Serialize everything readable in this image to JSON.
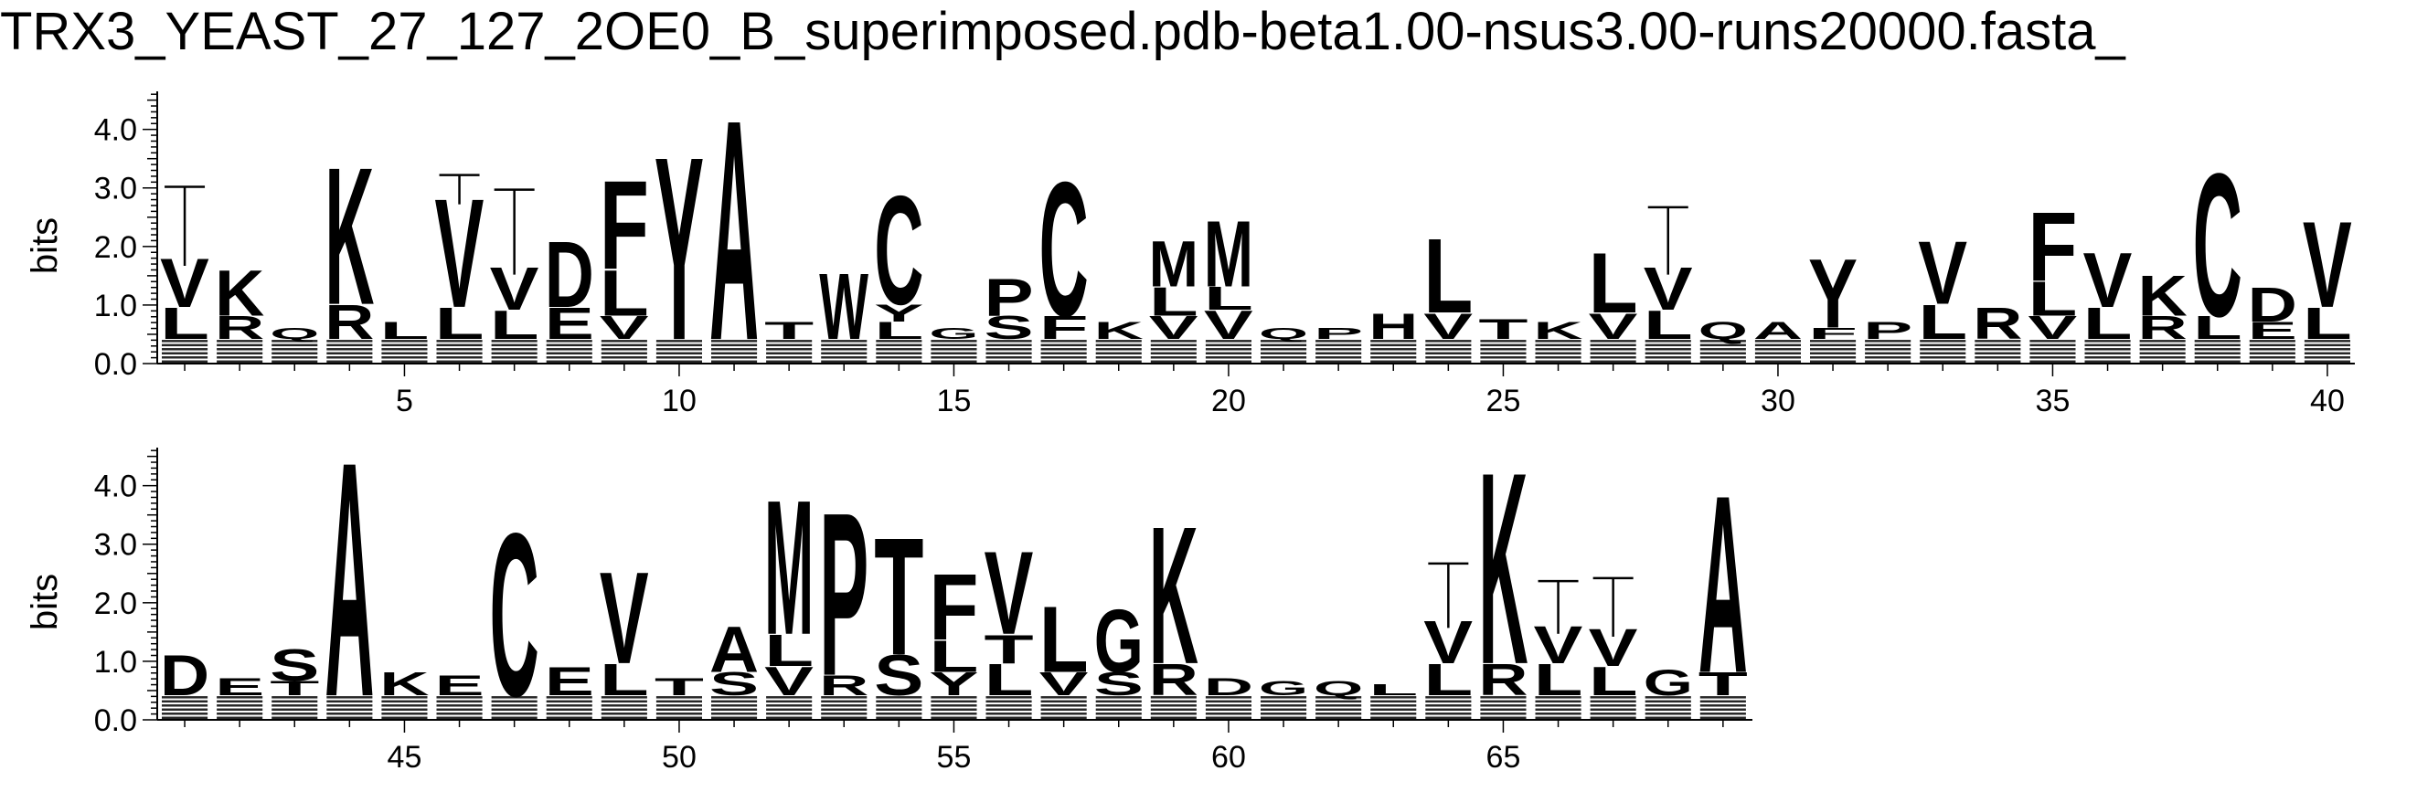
{
  "title": "TRX3_YEAST_27_127_2OE0_B_superimposed.pdb-beta1.00-nsus3.00-runs20000.fasta_",
  "chart_data": {
    "type": "sequence-logo",
    "ylabel": "bits",
    "ylim": [
      0,
      4.0
    ],
    "yticks": [
      "0.0",
      "1.0",
      "2.0",
      "3.0",
      "4.0"
    ],
    "rows": [
      {
        "positions": [
          1,
          40
        ],
        "xticks": [
          "5",
          "10",
          "15",
          "20",
          "25",
          "30",
          "35",
          "40"
        ],
        "columns": [
          {
            "pos": 1,
            "letters": [
              [
                "L",
                0.55
              ],
              [
                "V",
                0.85
              ]
            ],
            "err": 1.2
          },
          {
            "pos": 2,
            "letters": [
              [
                "R",
                0.4
              ],
              [
                "K",
                0.8
              ]
            ]
          },
          {
            "pos": 3,
            "letters": [
              [
                "Q",
                0.2
              ]
            ]
          },
          {
            "pos": 4,
            "letters": [
              [
                "R",
                0.6
              ],
              [
                "K",
                2.4
              ]
            ]
          },
          {
            "pos": 5,
            "letters": [
              [
                "L",
                0.3
              ]
            ]
          },
          {
            "pos": 6,
            "letters": [
              [
                "L",
                0.55
              ],
              [
                "V",
                1.9
              ]
            ],
            "err": 0.35
          },
          {
            "pos": 7,
            "letters": [
              [
                "L",
                0.5
              ],
              [
                "V",
                0.75
              ]
            ],
            "err": 1.3
          },
          {
            "pos": 8,
            "letters": [
              [
                "E",
                0.55
              ],
              [
                "D",
                1.15
              ]
            ]
          },
          {
            "pos": 9,
            "letters": [
              [
                "V",
                0.4
              ],
              [
                "L",
                0.8
              ],
              [
                "F",
                1.55
              ]
            ]
          },
          {
            "pos": 10,
            "letters": [
              [
                "Y",
                3.2
              ]
            ]
          },
          {
            "pos": 11,
            "letters": [
              [
                "A",
                3.85
              ]
            ]
          },
          {
            "pos": 12,
            "letters": [
              [
                "T",
                0.3
              ]
            ]
          },
          {
            "pos": 13,
            "letters": [
              [
                "W",
                1.15
              ]
            ]
          },
          {
            "pos": 14,
            "letters": [
              [
                "L",
                0.3
              ],
              [
                "Y",
                0.3
              ],
              [
                "C",
                1.9
              ]
            ]
          },
          {
            "pos": 15,
            "letters": [
              [
                "G",
                0.2
              ]
            ]
          },
          {
            "pos": 16,
            "letters": [
              [
                "S",
                0.4
              ],
              [
                "P",
                0.65
              ]
            ]
          },
          {
            "pos": 17,
            "letters": [
              [
                "F",
                0.4
              ],
              [
                "C",
                2.35
              ]
            ]
          },
          {
            "pos": 18,
            "letters": [
              [
                "K",
                0.3
              ]
            ]
          },
          {
            "pos": 19,
            "letters": [
              [
                "V",
                0.4
              ],
              [
                "L",
                0.5
              ],
              [
                "M",
                0.8
              ]
            ]
          },
          {
            "pos": 20,
            "letters": [
              [
                "V",
                0.5
              ],
              [
                "L",
                0.4
              ],
              [
                "M",
                1.15
              ]
            ]
          },
          {
            "pos": 21,
            "letters": [
              [
                "Q",
                0.2
              ]
            ]
          },
          {
            "pos": 22,
            "letters": [
              [
                "P",
                0.2
              ]
            ]
          },
          {
            "pos": 23,
            "letters": [
              [
                "H",
                0.45
              ]
            ]
          },
          {
            "pos": 24,
            "letters": [
              [
                "V",
                0.45
              ],
              [
                "L",
                1.3
              ]
            ]
          },
          {
            "pos": 25,
            "letters": [
              [
                "T",
                0.35
              ]
            ]
          },
          {
            "pos": 26,
            "letters": [
              [
                "K",
                0.3
              ]
            ]
          },
          {
            "pos": 27,
            "letters": [
              [
                "V",
                0.45
              ],
              [
                "L",
                1.05
              ]
            ]
          },
          {
            "pos": 28,
            "letters": [
              [
                "L",
                0.5
              ],
              [
                "V",
                0.75
              ]
            ],
            "err": 1.0
          },
          {
            "pos": 29,
            "letters": [
              [
                "Q",
                0.3
              ]
            ]
          },
          {
            "pos": 30,
            "letters": [
              [
                "A",
                0.3
              ]
            ]
          },
          {
            "pos": 31,
            "letters": [
              [
                "F",
                0.2
              ],
              [
                "Y",
                1.2
              ]
            ]
          },
          {
            "pos": 32,
            "letters": [
              [
                "P",
                0.3
              ]
            ]
          },
          {
            "pos": 33,
            "letters": [
              [
                "L",
                0.6
              ],
              [
                "V",
                1.1
              ]
            ]
          },
          {
            "pos": 34,
            "letters": [
              [
                "R",
                0.55
              ]
            ]
          },
          {
            "pos": 35,
            "letters": [
              [
                "V",
                0.4
              ],
              [
                "L",
                0.6
              ],
              [
                "F",
                1.2
              ]
            ]
          },
          {
            "pos": 36,
            "letters": [
              [
                "L",
                0.55
              ],
              [
                "V",
                0.95
              ]
            ]
          },
          {
            "pos": 37,
            "letters": [
              [
                "R",
                0.4
              ],
              [
                "K",
                0.7
              ]
            ]
          },
          {
            "pos": 38,
            "letters": [
              [
                "L",
                0.4
              ],
              [
                "C",
                2.5
              ]
            ]
          },
          {
            "pos": 39,
            "letters": [
              [
                "E",
                0.3
              ],
              [
                "D",
                0.6
              ]
            ]
          },
          {
            "pos": 40,
            "letters": [
              [
                "L",
                0.55
              ],
              [
                "V",
                1.5
              ]
            ]
          }
        ]
      },
      {
        "positions": [
          41,
          69
        ],
        "xticks": [
          "45",
          "50",
          "55",
          "60",
          "65"
        ],
        "columns": [
          {
            "pos": 41,
            "letters": [
              [
                "D",
                0.7
              ]
            ]
          },
          {
            "pos": 42,
            "letters": [
              [
                "E",
                0.3
              ]
            ]
          },
          {
            "pos": 43,
            "letters": [
              [
                "T",
                0.25
              ],
              [
                "S",
                0.55
              ]
            ]
          },
          {
            "pos": 44,
            "letters": [
              [
                "A",
                4.1
              ]
            ]
          },
          {
            "pos": 45,
            "letters": [
              [
                "K",
                0.4
              ]
            ]
          },
          {
            "pos": 46,
            "letters": [
              [
                "E",
                0.35
              ]
            ]
          },
          {
            "pos": 47,
            "letters": [
              [
                "C",
                2.85
              ]
            ]
          },
          {
            "pos": 48,
            "letters": [
              [
                "E",
                0.5
              ]
            ]
          },
          {
            "pos": 49,
            "letters": [
              [
                "L",
                0.55
              ],
              [
                "V",
                1.6
              ]
            ]
          },
          {
            "pos": 50,
            "letters": [
              [
                "T",
                0.3
              ]
            ]
          },
          {
            "pos": 51,
            "letters": [
              [
                "S",
                0.4
              ],
              [
                "A",
                0.8
              ]
            ]
          },
          {
            "pos": 52,
            "letters": [
              [
                "V",
                0.5
              ],
              [
                "L",
                0.55
              ],
              [
                "M",
                2.35
              ]
            ]
          },
          {
            "pos": 53,
            "letters": [
              [
                "R",
                0.35
              ],
              [
                "P",
                2.85
              ]
            ]
          },
          {
            "pos": 54,
            "letters": [
              [
                "S",
                0.7
              ],
              [
                "T",
                2.05
              ]
            ]
          },
          {
            "pos": 55,
            "letters": [
              [
                "Y",
                0.4
              ],
              [
                "L",
                0.55
              ],
              [
                "F",
                1.15
              ]
            ]
          },
          {
            "pos": 56,
            "letters": [
              [
                "L",
                0.55
              ],
              [
                "T",
                0.5
              ],
              [
                "V",
                1.45
              ]
            ]
          },
          {
            "pos": 57,
            "letters": [
              [
                "V",
                0.4
              ],
              [
                "L",
                1.15
              ]
            ]
          },
          {
            "pos": 58,
            "letters": [
              [
                "S",
                0.4
              ],
              [
                "G",
                1.1
              ]
            ]
          },
          {
            "pos": 59,
            "letters": [
              [
                "R",
                0.55
              ],
              [
                "K",
                2.4
              ]
            ]
          },
          {
            "pos": 60,
            "letters": [
              [
                "D",
                0.3
              ]
            ]
          },
          {
            "pos": 61,
            "letters": [
              [
                "G",
                0.25
              ]
            ]
          },
          {
            "pos": 62,
            "letters": [
              [
                "Q",
                0.25
              ]
            ]
          },
          {
            "pos": 63,
            "letters": [
              [
                "L",
                0.2
              ]
            ]
          },
          {
            "pos": 64,
            "letters": [
              [
                "L",
                0.55
              ],
              [
                "V",
                0.75
              ]
            ],
            "err": 0.95
          },
          {
            "pos": 65,
            "letters": [
              [
                "R",
                0.55
              ],
              [
                "K",
                3.35
              ]
            ]
          },
          {
            "pos": 66,
            "letters": [
              [
                "L",
                0.55
              ],
              [
                "V",
                0.65
              ]
            ],
            "err": 0.75
          },
          {
            "pos": 67,
            "letters": [
              [
                "L",
                0.5
              ],
              [
                "V",
                0.65
              ]
            ],
            "err": 0.85
          },
          {
            "pos": 68,
            "letters": [
              [
                "G",
                0.45
              ]
            ]
          },
          {
            "pos": 69,
            "letters": [
              [
                "T",
                0.4
              ],
              [
                "A",
                3.1
              ]
            ]
          }
        ]
      }
    ]
  }
}
